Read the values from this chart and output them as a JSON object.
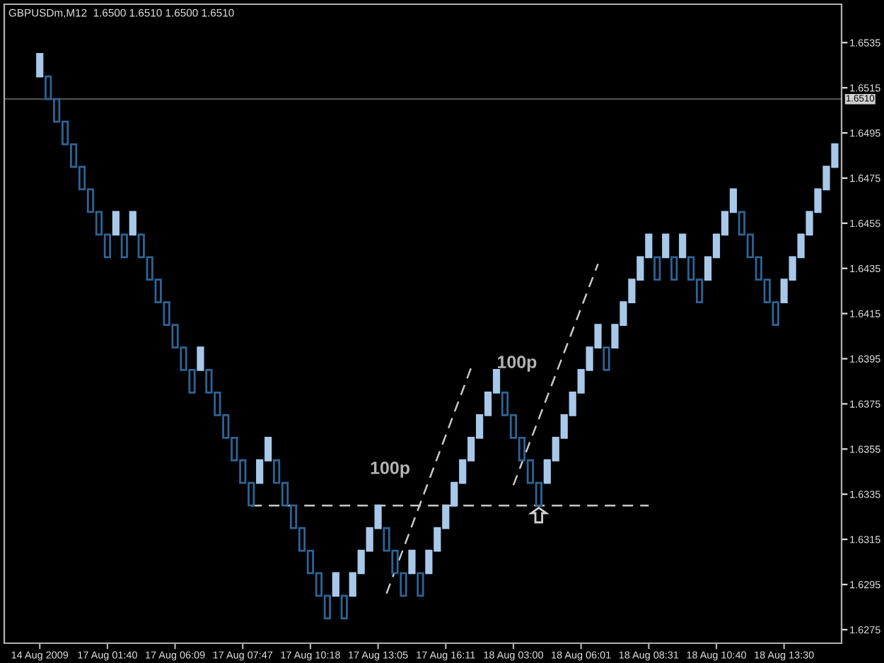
{
  "chart_data": {
    "type": "candlestick",
    "title": "GBPUSDm,M12  1.6500 1.6510 1.6500 1.6510",
    "categories": [
      "14 Aug 2009",
      null,
      null,
      null,
      null,
      null,
      null,
      null,
      "17 Aug 01:40",
      null,
      null,
      null,
      null,
      null,
      null,
      null,
      "17 Aug 06:09",
      null,
      null,
      null,
      null,
      null,
      null,
      null,
      "17 Aug 07:47",
      null,
      null,
      null,
      null,
      null,
      null,
      null,
      "17 Aug 10:18",
      null,
      null,
      null,
      null,
      null,
      null,
      null,
      "17 Aug 13:05",
      null,
      null,
      null,
      null,
      null,
      null,
      null,
      "17 Aug 16:11",
      null,
      null,
      null,
      null,
      null,
      null,
      null,
      "18 Aug 03:00",
      null,
      null,
      null,
      null,
      null,
      null,
      null,
      "18 Aug 06:01",
      null,
      null,
      null,
      null,
      null,
      null,
      null,
      "18 Aug 08:31",
      null,
      null,
      null,
      null,
      null,
      null,
      null,
      "18 Aug 10:40",
      null,
      null,
      null,
      null,
      null,
      null,
      null,
      "18 Aug 13:30",
      null,
      null,
      null,
      null,
      null,
      null
    ],
    "ohlc": [
      [
        1.652,
        1.653,
        1.652,
        1.653
      ],
      [
        1.652,
        1.652,
        1.651,
        1.651
      ],
      [
        1.651,
        1.651,
        1.65,
        1.65
      ],
      [
        1.65,
        1.65,
        1.649,
        1.649
      ],
      [
        1.649,
        1.649,
        1.648,
        1.648
      ],
      [
        1.648,
        1.648,
        1.647,
        1.647
      ],
      [
        1.647,
        1.647,
        1.646,
        1.646
      ],
      [
        1.646,
        1.646,
        1.645,
        1.645
      ],
      [
        1.645,
        1.645,
        1.644,
        1.644
      ],
      [
        1.645,
        1.646,
        1.645,
        1.646
      ],
      [
        1.645,
        1.645,
        1.644,
        1.644
      ],
      [
        1.645,
        1.646,
        1.645,
        1.646
      ],
      [
        1.645,
        1.645,
        1.644,
        1.644
      ],
      [
        1.644,
        1.644,
        1.643,
        1.643
      ],
      [
        1.643,
        1.643,
        1.642,
        1.642
      ],
      [
        1.642,
        1.642,
        1.641,
        1.641
      ],
      [
        1.641,
        1.641,
        1.64,
        1.64
      ],
      [
        1.64,
        1.64,
        1.639,
        1.639
      ],
      [
        1.639,
        1.639,
        1.638,
        1.638
      ],
      [
        1.639,
        1.64,
        1.639,
        1.64
      ],
      [
        1.639,
        1.639,
        1.638,
        1.638
      ],
      [
        1.638,
        1.638,
        1.637,
        1.637
      ],
      [
        1.637,
        1.637,
        1.636,
        1.636
      ],
      [
        1.636,
        1.636,
        1.635,
        1.635
      ],
      [
        1.635,
        1.635,
        1.634,
        1.634
      ],
      [
        1.634,
        1.634,
        1.633,
        1.633
      ],
      [
        1.634,
        1.635,
        1.634,
        1.635
      ],
      [
        1.635,
        1.636,
        1.635,
        1.636
      ],
      [
        1.635,
        1.635,
        1.634,
        1.634
      ],
      [
        1.634,
        1.634,
        1.633,
        1.633
      ],
      [
        1.633,
        1.633,
        1.632,
        1.632
      ],
      [
        1.632,
        1.632,
        1.631,
        1.631
      ],
      [
        1.631,
        1.631,
        1.63,
        1.63
      ],
      [
        1.63,
        1.63,
        1.629,
        1.629
      ],
      [
        1.629,
        1.629,
        1.628,
        1.628
      ],
      [
        1.629,
        1.63,
        1.629,
        1.63
      ],
      [
        1.629,
        1.629,
        1.628,
        1.628
      ],
      [
        1.629,
        1.63,
        1.629,
        1.63
      ],
      [
        1.63,
        1.631,
        1.63,
        1.631
      ],
      [
        1.631,
        1.632,
        1.631,
        1.632
      ],
      [
        1.632,
        1.633,
        1.632,
        1.633
      ],
      [
        1.632,
        1.632,
        1.631,
        1.631
      ],
      [
        1.631,
        1.631,
        1.63,
        1.63
      ],
      [
        1.63,
        1.63,
        1.629,
        1.629
      ],
      [
        1.63,
        1.631,
        1.63,
        1.631
      ],
      [
        1.63,
        1.63,
        1.629,
        1.629
      ],
      [
        1.63,
        1.631,
        1.63,
        1.631
      ],
      [
        1.631,
        1.632,
        1.631,
        1.632
      ],
      [
        1.632,
        1.633,
        1.632,
        1.633
      ],
      [
        1.633,
        1.634,
        1.633,
        1.634
      ],
      [
        1.634,
        1.635,
        1.634,
        1.635
      ],
      [
        1.635,
        1.636,
        1.635,
        1.636
      ],
      [
        1.636,
        1.637,
        1.636,
        1.637
      ],
      [
        1.637,
        1.638,
        1.637,
        1.638
      ],
      [
        1.638,
        1.639,
        1.638,
        1.639
      ],
      [
        1.638,
        1.638,
        1.637,
        1.637
      ],
      [
        1.637,
        1.637,
        1.636,
        1.636
      ],
      [
        1.636,
        1.636,
        1.635,
        1.635
      ],
      [
        1.635,
        1.635,
        1.634,
        1.634
      ],
      [
        1.634,
        1.634,
        1.633,
        1.633
      ],
      [
        1.634,
        1.635,
        1.634,
        1.635
      ],
      [
        1.635,
        1.636,
        1.635,
        1.636
      ],
      [
        1.636,
        1.637,
        1.636,
        1.637
      ],
      [
        1.637,
        1.638,
        1.637,
        1.638
      ],
      [
        1.638,
        1.639,
        1.638,
        1.639
      ],
      [
        1.639,
        1.64,
        1.639,
        1.64
      ],
      [
        1.64,
        1.641,
        1.64,
        1.641
      ],
      [
        1.64,
        1.64,
        1.639,
        1.639
      ],
      [
        1.64,
        1.641,
        1.64,
        1.641
      ],
      [
        1.641,
        1.642,
        1.641,
        1.642
      ],
      [
        1.642,
        1.643,
        1.642,
        1.643
      ],
      [
        1.643,
        1.644,
        1.643,
        1.644
      ],
      [
        1.644,
        1.645,
        1.644,
        1.645
      ],
      [
        1.644,
        1.644,
        1.643,
        1.643
      ],
      [
        1.644,
        1.645,
        1.644,
        1.645
      ],
      [
        1.644,
        1.644,
        1.643,
        1.643
      ],
      [
        1.644,
        1.645,
        1.644,
        1.645
      ],
      [
        1.644,
        1.644,
        1.643,
        1.643
      ],
      [
        1.643,
        1.643,
        1.642,
        1.642
      ],
      [
        1.643,
        1.644,
        1.643,
        1.644
      ],
      [
        1.644,
        1.645,
        1.644,
        1.645
      ],
      [
        1.645,
        1.646,
        1.645,
        1.646
      ],
      [
        1.646,
        1.647,
        1.646,
        1.647
      ],
      [
        1.646,
        1.646,
        1.645,
        1.645
      ],
      [
        1.645,
        1.645,
        1.644,
        1.644
      ],
      [
        1.644,
        1.644,
        1.643,
        1.643
      ],
      [
        1.643,
        1.643,
        1.642,
        1.642
      ],
      [
        1.642,
        1.642,
        1.641,
        1.641
      ],
      [
        1.642,
        1.643,
        1.642,
        1.643
      ],
      [
        1.643,
        1.644,
        1.643,
        1.644
      ],
      [
        1.644,
        1.645,
        1.644,
        1.645
      ],
      [
        1.645,
        1.646,
        1.645,
        1.646
      ],
      [
        1.646,
        1.647,
        1.646,
        1.647
      ],
      [
        1.647,
        1.648,
        1.647,
        1.648
      ],
      [
        1.648,
        1.649,
        1.648,
        1.649
      ]
    ],
    "colors": [
      "#a8c8ea",
      "#2e6496",
      "#2e6496",
      "#2e6496",
      "#2e6496",
      "#2e6496",
      "#2e6496",
      "#2e6496",
      "#2e6496",
      "#a8c8ea",
      "#2e6496",
      "#a8c8ea",
      "#2e6496",
      "#2e6496",
      "#2e6496",
      "#2e6496",
      "#2e6496",
      "#2e6496",
      "#2e6496",
      "#a8c8ea",
      "#2e6496",
      "#2e6496",
      "#2e6496",
      "#2e6496",
      "#2e6496",
      "#2e6496",
      "#a8c8ea",
      "#a8c8ea",
      "#2e6496",
      "#2e6496",
      "#2e6496",
      "#2e6496",
      "#2e6496",
      "#2e6496",
      "#2e6496",
      "#a8c8ea",
      "#2e6496",
      "#a8c8ea",
      "#a8c8ea",
      "#a8c8ea",
      "#a8c8ea",
      "#2e6496",
      "#2e6496",
      "#2e6496",
      "#a8c8ea",
      "#2e6496",
      "#a8c8ea",
      "#a8c8ea",
      "#a8c8ea",
      "#a8c8ea",
      "#a8c8ea",
      "#a8c8ea",
      "#a8c8ea",
      "#a8c8ea",
      "#a8c8ea",
      "#2e6496",
      "#2e6496",
      "#2e6496",
      "#2e6496",
      "#2e6496",
      "#a8c8ea",
      "#a8c8ea",
      "#a8c8ea",
      "#a8c8ea",
      "#a8c8ea",
      "#a8c8ea",
      "#a8c8ea",
      "#2e6496",
      "#a8c8ea",
      "#a8c8ea",
      "#a8c8ea",
      "#a8c8ea",
      "#a8c8ea",
      "#2e6496",
      "#a8c8ea",
      "#2e6496",
      "#a8c8ea",
      "#2e6496",
      "#2e6496",
      "#a8c8ea",
      "#a8c8ea",
      "#a8c8ea",
      "#a8c8ea",
      "#2e6496",
      "#2e6496",
      "#2e6496",
      "#2e6496",
      "#2e6496",
      "#a8c8ea",
      "#a8c8ea",
      "#a8c8ea",
      "#a8c8ea",
      "#a8c8ea",
      "#a8c8ea",
      "#a8c8ea"
    ],
    "series": [
      {
        "type": "line",
        "line_style": "dashed",
        "color": "#c8c8c8",
        "values": [
          null,
          null,
          null,
          null,
          null,
          null,
          null,
          null,
          null,
          null,
          null,
          null,
          null,
          null,
          null,
          null,
          null,
          null,
          null,
          null,
          null,
          null,
          null,
          null,
          null,
          1.633,
          null,
          null,
          null,
          null,
          null,
          null,
          null,
          null,
          null,
          null,
          null,
          null,
          null,
          null,
          null,
          null,
          null,
          null,
          null,
          null,
          null,
          null,
          null,
          null,
          null,
          null,
          null,
          null,
          null,
          null,
          null,
          null,
          null,
          null,
          null,
          null,
          null,
          null,
          null,
          null,
          null,
          null,
          null,
          null,
          null,
          null,
          1.633,
          null,
          null,
          null,
          null,
          null,
          null,
          null,
          null,
          null,
          null,
          null,
          null,
          null,
          null,
          null,
          null,
          null,
          null,
          null,
          null,
          null,
          null
        ]
      },
      {
        "type": "line",
        "line_style": "dashed",
        "color": "#c8c8c8",
        "values": [
          null,
          null,
          null,
          null,
          null,
          null,
          null,
          null,
          null,
          null,
          null,
          null,
          null,
          null,
          null,
          null,
          null,
          null,
          null,
          null,
          null,
          null,
          null,
          null,
          null,
          null,
          null,
          null,
          null,
          null,
          null,
          null,
          null,
          null,
          null,
          null,
          null,
          null,
          null,
          null,
          null,
          1.6291,
          null,
          null,
          null,
          null,
          null,
          null,
          null,
          null,
          null,
          1.6391,
          null,
          null,
          null,
          null,
          null,
          null,
          null,
          null,
          null,
          null,
          null,
          null,
          null,
          null,
          null,
          null,
          null,
          null,
          null,
          null,
          null,
          null,
          null,
          null,
          null,
          null,
          null,
          null,
          null,
          null,
          null,
          null,
          null,
          null,
          null,
          null,
          null,
          null,
          null,
          null,
          null,
          null,
          null
        ]
      },
      {
        "type": "line",
        "line_style": "dashed",
        "color": "#c8c8c8",
        "values": [
          null,
          null,
          null,
          null,
          null,
          null,
          null,
          null,
          null,
          null,
          null,
          null,
          null,
          null,
          null,
          null,
          null,
          null,
          null,
          null,
          null,
          null,
          null,
          null,
          null,
          null,
          null,
          null,
          null,
          null,
          null,
          null,
          null,
          null,
          null,
          null,
          null,
          null,
          null,
          null,
          null,
          null,
          null,
          null,
          null,
          null,
          null,
          null,
          null,
          null,
          null,
          null,
          null,
          null,
          null,
          null,
          1.6339,
          null,
          null,
          null,
          null,
          null,
          null,
          null,
          null,
          null,
          1.6437,
          null,
          null,
          null,
          null,
          null,
          null,
          null,
          null,
          null,
          null,
          null,
          null,
          null,
          null,
          null,
          null,
          null,
          null,
          null,
          null,
          null,
          null,
          null,
          null,
          null,
          null,
          null,
          null
        ]
      }
    ],
    "annotations": [
      "100p",
      "100p"
    ],
    "ref_lines": [
      {
        "axis": "y",
        "value": 1.651,
        "label": "1.6510",
        "color": "#505050",
        "line_style": "solid"
      }
    ],
    "ylim": [
      1.6269,
      1.6552
    ],
    "yticks": [
      1.6275,
      1.6295,
      1.6315,
      1.6335,
      1.6355,
      1.6375,
      1.6395,
      1.6415,
      1.6435,
      1.6455,
      1.6475,
      1.6495,
      1.6515,
      1.6535
    ],
    "grid": false,
    "legend": false
  }
}
